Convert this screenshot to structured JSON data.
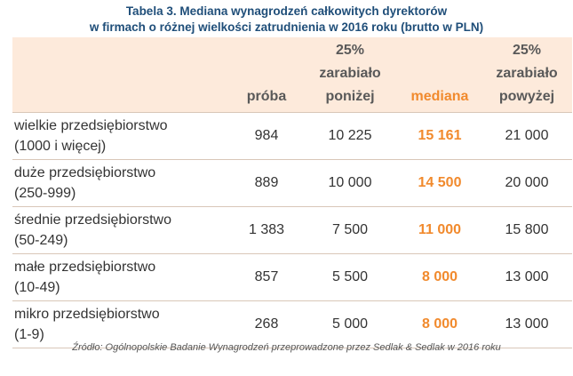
{
  "title": {
    "line1": "Tabela 3. Mediana wynagrodzeń całkowitych dyrektorów",
    "line2": "w firmach o różnej wielkości zatrudnienia w 2016 roku (brutto w PLN)"
  },
  "columns": {
    "proba": "próba",
    "p25_line1": "25%",
    "p25_line2": "zarabiało",
    "p25_line3": "poniżej",
    "mediana": "mediana",
    "p75_line1": "25%",
    "p75_line2": "zarabiało",
    "p75_line3": "powyżej"
  },
  "rows": [
    {
      "name": "wielkie przedsiębiorstwo",
      "range": "(1000 i więcej)",
      "proba": "984",
      "p25": "10 225",
      "mediana": "15 161",
      "p75": "21 000"
    },
    {
      "name": "duże przedsiębiorstwo",
      "range": "(250-999)",
      "proba": "889",
      "p25": "10 000",
      "mediana": "14 500",
      "p75": "20 000"
    },
    {
      "name": "średnie przedsiębiorstwo",
      "range": "(50-249)",
      "proba": "1 383",
      "p25": "7 500",
      "mediana": "11 000",
      "p75": "15 800"
    },
    {
      "name": "małe przedsiębiorstwo",
      "range": "(10-49)",
      "proba": "857",
      "p25": "5 500",
      "mediana": "8 000",
      "p75": "13 000"
    },
    {
      "name": "mikro przedsiębiorstwo",
      "range": "(1-9)",
      "proba": "268",
      "p25": "5 000",
      "mediana": "8 000",
      "p75": "13 000"
    }
  ],
  "source": "Źródło: Ogólnopolskie Badanie Wynagrodzeń przeprowadzone przez Sedlak & Sedlak w 2016 roku",
  "colors": {
    "title": "#1f4e79",
    "accent": "#f18a2d",
    "header_bg": "#fdeadb"
  }
}
